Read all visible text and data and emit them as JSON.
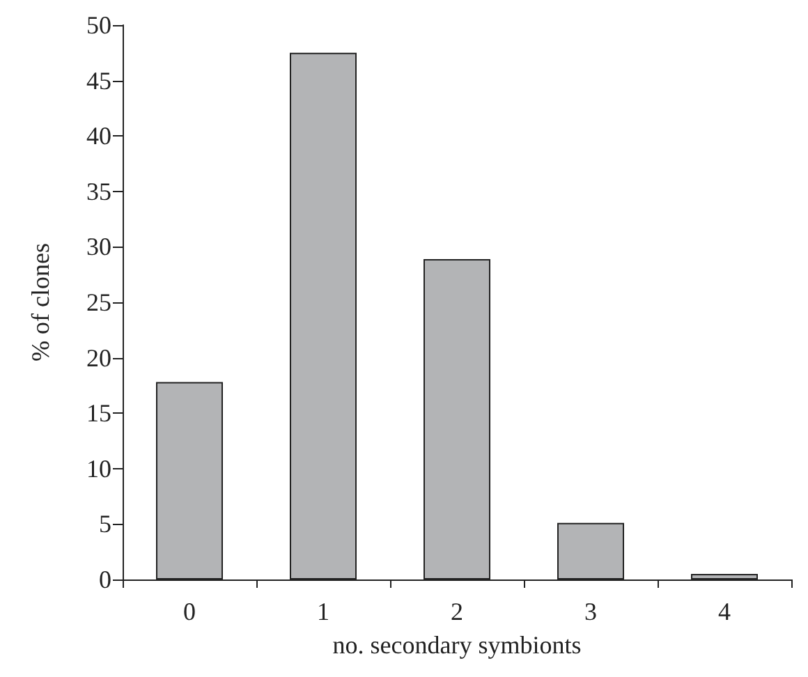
{
  "chart_data": {
    "type": "bar",
    "xlabel": "no. secondary symbionts",
    "ylabel": "% of clones",
    "categories": [
      "0",
      "1",
      "2",
      "3",
      "4"
    ],
    "values": [
      17.8,
      47.5,
      28.9,
      5.1,
      0.5
    ],
    "color": "#b3b4b6",
    "ylim": [
      0,
      50
    ],
    "yticks": [
      0,
      5,
      10,
      15,
      20,
      25,
      30,
      35,
      40,
      45,
      50
    ],
    "grid": false
  }
}
